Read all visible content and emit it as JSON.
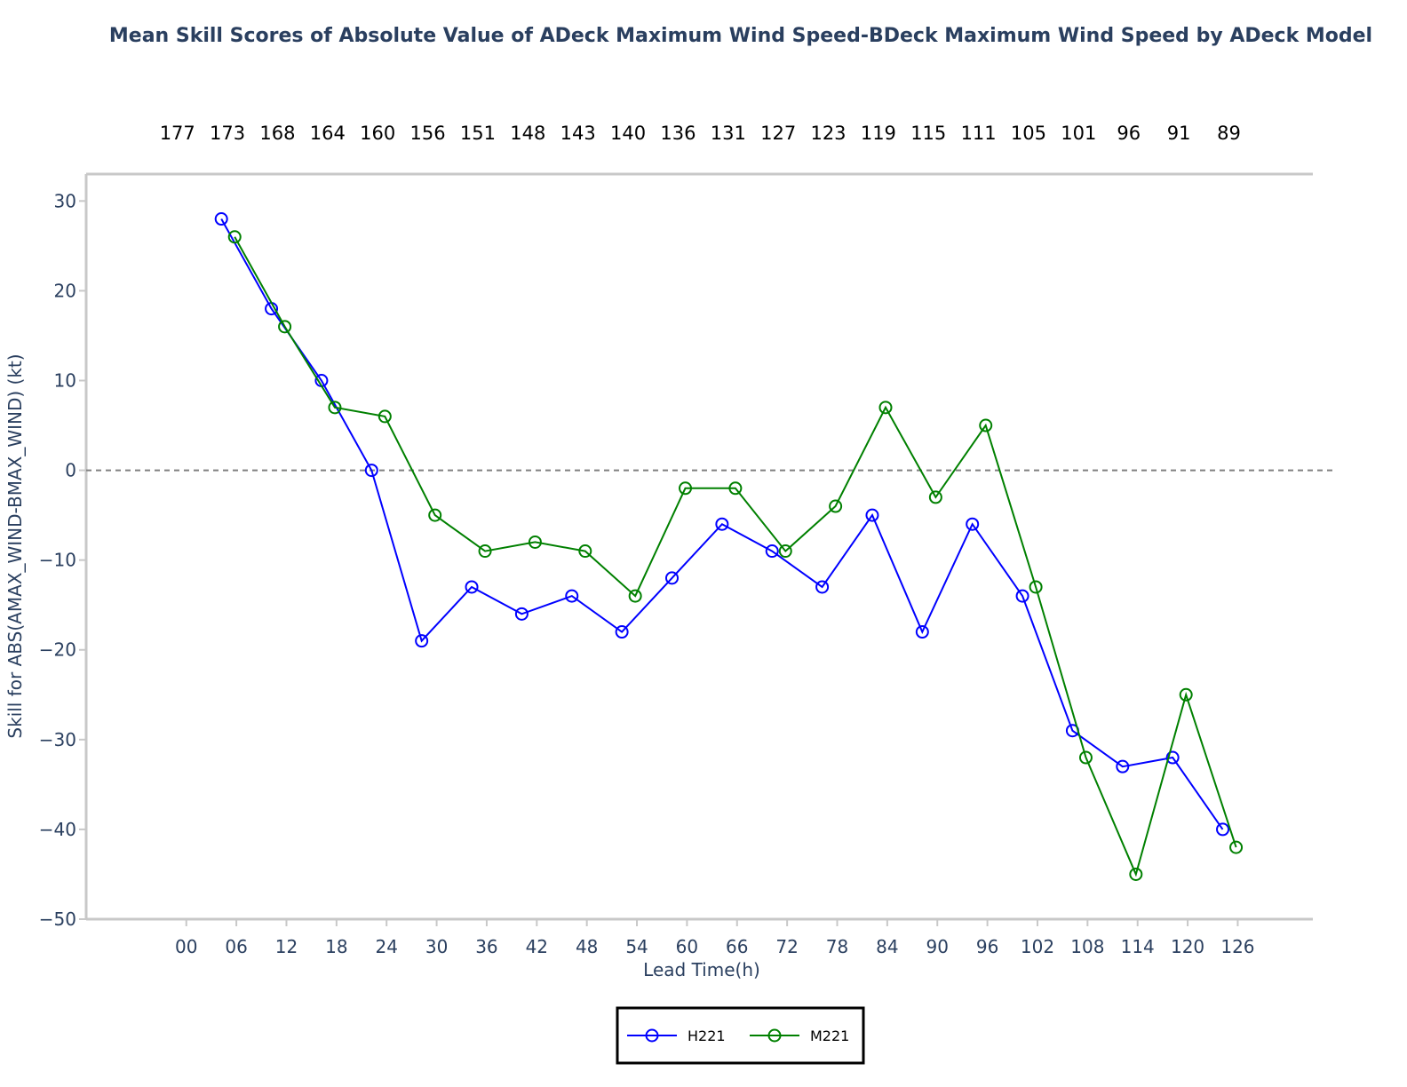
{
  "chart_data": {
    "type": "line",
    "title": "Mean Skill Scores of Absolute Value of ADeck Maximum Wind Speed-BDeck Maximum Wind Speed by ADeck Model",
    "xlabel": "Lead Time(h)",
    "ylabel": "Skill for ABS(AMAX_WIND-BMAX_WIND) (kt)",
    "x_ticks": [
      "00",
      "06",
      "12",
      "18",
      "24",
      "30",
      "36",
      "42",
      "48",
      "54",
      "60",
      "66",
      "72",
      "78",
      "84",
      "90",
      "96",
      "102",
      "108",
      "114",
      "120",
      "126"
    ],
    "counts": [
      "177",
      "173",
      "168",
      "164",
      "160",
      "156",
      "151",
      "148",
      "143",
      "140",
      "136",
      "131",
      "127",
      "123",
      "119",
      "115",
      "111",
      "105",
      "101",
      "96",
      "91",
      "89"
    ],
    "xlim": [
      -12,
      135
    ],
    "ylim": [
      -50,
      33
    ],
    "y_ticks": [
      30,
      20,
      10,
      0,
      -10,
      -20,
      -30,
      -40,
      -50
    ],
    "y_tick_labels": [
      "30",
      "20",
      "10",
      "0",
      "−10",
      "−20",
      "−30",
      "−40",
      "−50"
    ],
    "reference_line": 0,
    "legend_position": "bottom-center",
    "series": [
      {
        "name": "H221",
        "color": "#0000ff",
        "x": [
          4.2,
          10.2,
          16.2,
          22.2,
          28.2,
          34.2,
          40.2,
          46.2,
          52.2,
          58.2,
          64.2,
          70.2,
          76.2,
          82.2,
          88.2,
          94.2,
          100.2,
          106.2,
          112.2,
          118.2,
          124.2
        ],
        "y": [
          28,
          18,
          10,
          0,
          -19,
          -13,
          -16,
          -14,
          -18,
          -12,
          -6,
          -9,
          -13,
          -5,
          -18,
          -6,
          -14,
          -29,
          -33,
          -32,
          -40
        ]
      },
      {
        "name": "M221",
        "color": "#008000",
        "x": [
          5.8,
          11.8,
          17.8,
          23.8,
          29.8,
          35.8,
          41.8,
          47.8,
          53.8,
          59.8,
          65.8,
          71.8,
          77.8,
          83.8,
          89.8,
          95.8,
          101.8,
          107.8,
          113.8,
          119.8,
          125.8
        ],
        "y": [
          26,
          16,
          7,
          6,
          -5,
          -9,
          -8,
          -9,
          -14,
          -2,
          -2,
          -9,
          -4,
          7,
          -3,
          5,
          -13,
          -32,
          -45,
          -25,
          -42
        ]
      }
    ]
  }
}
